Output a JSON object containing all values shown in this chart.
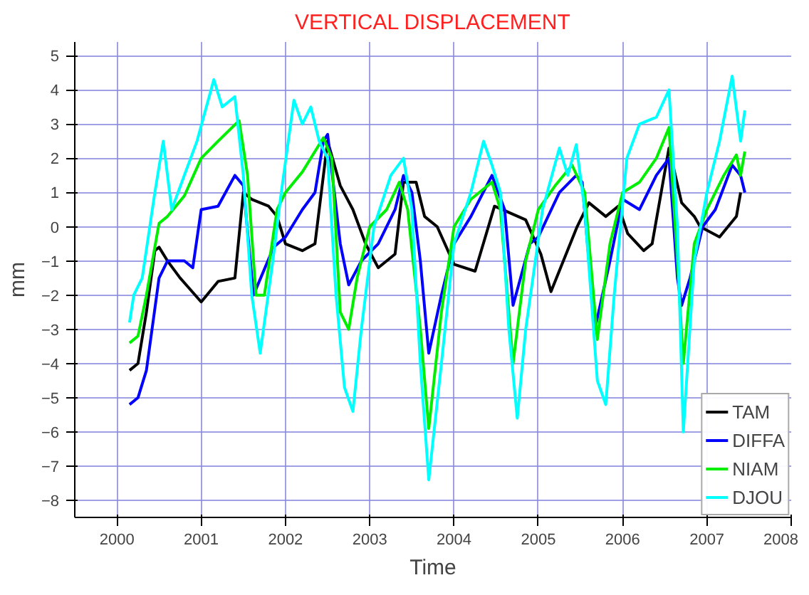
{
  "chart_data": {
    "type": "line",
    "title": "VERTICAL DISPLACEMENT",
    "xlabel": "Time",
    "ylabel": "mm",
    "xlim": [
      1999.5,
      2008
    ],
    "ylim": [
      -8.5,
      5.4
    ],
    "xticks": [
      2000,
      2001,
      2002,
      2003,
      2004,
      2005,
      2006,
      2007,
      2008
    ],
    "yticks": [
      -8,
      -7,
      -6,
      -5,
      -4,
      -3,
      -2,
      -1,
      0,
      1,
      2,
      3,
      4,
      5
    ],
    "grid": true,
    "legend": "bottom right",
    "line_style": "solid",
    "series": [
      {
        "name": "TAM",
        "color": "#000000",
        "x": [
          2000.15,
          2000.25,
          2000.35,
          2000.45,
          2000.5,
          2000.6,
          2000.75,
          2001.0,
          2001.2,
          2001.4,
          2001.5,
          2001.6,
          2001.8,
          2001.9,
          2002.0,
          2002.2,
          2002.35,
          2002.5,
          2002.65,
          2002.8,
          2002.95,
          2003.1,
          2003.3,
          2003.4,
          2003.55,
          2003.65,
          2003.8,
          2004.0,
          2004.25,
          2004.48,
          2004.85,
          2005.03,
          2005.15,
          2005.46,
          2005.6,
          2005.8,
          2005.95,
          2006.06,
          2006.25,
          2006.35,
          2006.55,
          2006.7,
          2006.85,
          2006.92,
          2007.15,
          2007.35,
          2007.4
        ],
        "values": [
          -4.2,
          -4.0,
          -2.5,
          -0.7,
          -0.6,
          -1.0,
          -1.5,
          -2.2,
          -1.6,
          -1.5,
          1.0,
          0.8,
          0.6,
          0.3,
          -0.5,
          -0.7,
          -0.5,
          2.5,
          1.2,
          0.5,
          -0.5,
          -1.2,
          -0.8,
          1.3,
          1.3,
          0.3,
          0.0,
          -1.1,
          -1.3,
          0.6,
          0.2,
          -0.8,
          -1.9,
          0.0,
          0.7,
          0.3,
          0.6,
          -0.2,
          -0.7,
          -0.5,
          2.3,
          0.7,
          0.3,
          0.0,
          -0.3,
          0.3,
          1.0
        ]
      },
      {
        "name": "DIFFA",
        "color": "#0000ff",
        "x": [
          2000.15,
          2000.25,
          2000.35,
          2000.5,
          2000.6,
          2000.8,
          2000.9,
          2001.0,
          2001.2,
          2001.4,
          2001.5,
          2001.62,
          2001.86,
          2002.0,
          2002.2,
          2002.35,
          2002.45,
          2002.5,
          2002.65,
          2002.75,
          2002.9,
          2003.1,
          2003.3,
          2003.4,
          2003.5,
          2003.6,
          2003.7,
          2003.85,
          2004.0,
          2004.2,
          2004.45,
          2004.6,
          2004.7,
          2004.9,
          2005.0,
          2005.25,
          2005.45,
          2005.52,
          2005.67,
          2005.85,
          2006.0,
          2006.2,
          2006.4,
          2006.55,
          2006.65,
          2006.7,
          2006.8,
          2006.95,
          2007.1,
          2007.3,
          2007.4,
          2007.45
        ],
        "values": [
          -5.2,
          -5.0,
          -4.2,
          -1.5,
          -1.0,
          -1.0,
          -1.2,
          0.5,
          0.6,
          1.5,
          1.2,
          -2.0,
          -0.6,
          -0.3,
          0.5,
          1.0,
          2.5,
          2.7,
          -0.5,
          -1.7,
          -1.0,
          -0.5,
          0.5,
          1.5,
          1.0,
          -1.0,
          -3.7,
          -2.0,
          -0.5,
          0.3,
          1.5,
          0.5,
          -2.3,
          -0.5,
          -0.3,
          1.0,
          1.5,
          1.3,
          -3.0,
          -1.0,
          0.8,
          0.5,
          1.5,
          2.0,
          -1.5,
          -2.3,
          -1.5,
          0.0,
          0.5,
          1.8,
          1.5,
          1.0
        ]
      },
      {
        "name": "NIAM",
        "color": "#00ee00",
        "x": [
          2000.15,
          2000.25,
          2000.35,
          2000.5,
          2000.6,
          2000.8,
          2001.0,
          2001.2,
          2001.45,
          2001.55,
          2001.65,
          2001.75,
          2001.9,
          2002.0,
          2002.2,
          2002.35,
          2002.45,
          2002.55,
          2002.65,
          2002.75,
          2002.85,
          2003.0,
          2003.2,
          2003.35,
          2003.45,
          2003.6,
          2003.7,
          2003.85,
          2004.0,
          2004.2,
          2004.45,
          2004.55,
          2004.7,
          2004.85,
          2005.0,
          2005.2,
          2005.4,
          2005.55,
          2005.7,
          2005.85,
          2006.0,
          2006.2,
          2006.4,
          2006.55,
          2006.65,
          2006.72,
          2006.85,
          2007.0,
          2007.2,
          2007.35,
          2007.4,
          2007.45
        ],
        "values": [
          -3.4,
          -3.2,
          -2.0,
          0.1,
          0.3,
          0.9,
          2.0,
          2.5,
          3.1,
          1.5,
          -2.0,
          -2.0,
          0.5,
          1.0,
          1.6,
          2.2,
          2.6,
          2.0,
          -2.5,
          -3.0,
          -1.5,
          0.0,
          0.5,
          1.3,
          0.5,
          -3.0,
          -5.9,
          -2.5,
          0.0,
          0.8,
          1.3,
          0.5,
          -4.0,
          -1.0,
          0.5,
          1.2,
          1.8,
          1.0,
          -3.3,
          -0.5,
          1.0,
          1.3,
          2.0,
          2.9,
          -1.0,
          -4.0,
          -0.5,
          0.5,
          1.5,
          2.1,
          1.5,
          2.2
        ]
      },
      {
        "name": "DJOU",
        "color": "#00ffff",
        "x": [
          2000.15,
          2000.2,
          2000.3,
          2000.45,
          2000.55,
          2000.65,
          2000.8,
          2000.95,
          2001.15,
          2001.25,
          2001.4,
          2001.5,
          2001.6,
          2001.7,
          2001.85,
          2001.95,
          2002.1,
          2002.2,
          2002.3,
          2002.4,
          2002.5,
          2002.6,
          2002.7,
          2002.8,
          2002.9,
          2003.05,
          2003.25,
          2003.4,
          2003.5,
          2003.6,
          2003.7,
          2003.85,
          2004.0,
          2004.2,
          2004.35,
          2004.45,
          2004.55,
          2004.65,
          2004.75,
          2004.85,
          2005.05,
          2005.25,
          2005.35,
          2005.45,
          2005.55,
          2005.7,
          2005.8,
          2005.9,
          2006.05,
          2006.2,
          2006.4,
          2006.55,
          2006.65,
          2006.72,
          2006.85,
          2007.0,
          2007.15,
          2007.3,
          2007.4,
          2007.45
        ],
        "values": [
          -2.8,
          -2.0,
          -1.5,
          1.0,
          2.5,
          0.5,
          1.5,
          2.5,
          4.3,
          3.5,
          3.8,
          1.5,
          -2.0,
          -3.7,
          -1.0,
          1.0,
          3.7,
          3.0,
          3.5,
          2.5,
          2.0,
          -2.0,
          -4.7,
          -5.4,
          -3.0,
          0.0,
          1.5,
          2.0,
          0.5,
          -4.0,
          -7.4,
          -4.0,
          -0.5,
          1.0,
          2.5,
          1.8,
          1.0,
          -3.0,
          -5.6,
          -3.0,
          0.5,
          2.3,
          1.5,
          2.4,
          0.5,
          -4.5,
          -5.2,
          -2.0,
          2.0,
          3.0,
          3.2,
          4.0,
          0.0,
          -6.0,
          -1.0,
          1.0,
          2.5,
          4.4,
          2.5,
          3.4
        ]
      }
    ]
  }
}
